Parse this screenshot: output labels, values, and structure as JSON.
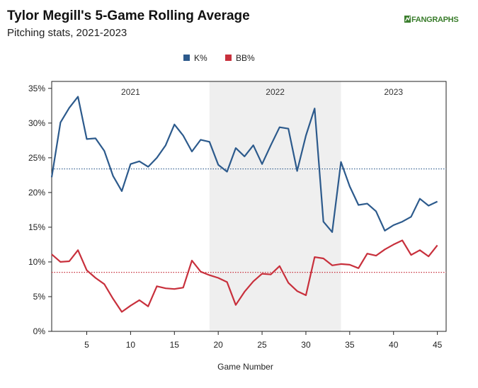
{
  "header": {
    "title": "Tylor Megill's 5-Game Rolling Average",
    "subtitle": "Pitching stats, 2021-2023",
    "logo_text": "FANGRAPHS"
  },
  "chart_data": {
    "type": "line",
    "xlabel": "Game Number",
    "ylabel": "",
    "xlim": [
      1,
      46
    ],
    "ylim": [
      0,
      0.36
    ],
    "x_ticks": [
      5,
      10,
      15,
      20,
      25,
      30,
      35,
      40,
      45
    ],
    "y_ticks": [
      0,
      0.05,
      0.1,
      0.15,
      0.2,
      0.25,
      0.3,
      0.35
    ],
    "y_tick_labels": [
      "0%",
      "5%",
      "10%",
      "15%",
      "20%",
      "25%",
      "30%",
      "35%"
    ],
    "grid": false,
    "legend_placement": "top-center",
    "season_bands": [
      {
        "label": "2021",
        "start": 1,
        "end": 19,
        "shaded": false
      },
      {
        "label": "2022",
        "start": 19,
        "end": 34,
        "shaded": true
      },
      {
        "label": "2023",
        "start": 34,
        "end": 46,
        "shaded": false
      }
    ],
    "series": [
      {
        "name": "K%",
        "color": "#2c5a8c",
        "average": 0.234,
        "x": [
          1,
          2,
          3,
          4,
          5,
          6,
          7,
          8,
          9,
          10,
          11,
          12,
          13,
          14,
          15,
          16,
          17,
          18,
          19,
          20,
          21,
          22,
          23,
          24,
          25,
          26,
          27,
          28,
          29,
          30,
          31,
          32,
          33,
          34,
          35,
          36,
          37,
          38,
          39,
          40,
          41,
          42,
          43,
          44,
          45
        ],
        "values": [
          0.222,
          0.301,
          0.322,
          0.338,
          0.277,
          0.278,
          0.26,
          0.224,
          0.202,
          0.241,
          0.245,
          0.237,
          0.25,
          0.268,
          0.298,
          0.282,
          0.259,
          0.276,
          0.273,
          0.24,
          0.23,
          0.264,
          0.252,
          0.268,
          0.241,
          0.268,
          0.294,
          0.292,
          0.231,
          0.282,
          0.321,
          0.158,
          0.143,
          0.244,
          0.209,
          0.182,
          0.184,
          0.173,
          0.145,
          0.153,
          0.158,
          0.165,
          0.191,
          0.181,
          0.187
        ]
      },
      {
        "name": "BB%",
        "color": "#c8303c",
        "average": 0.085,
        "x": [
          1,
          2,
          3,
          4,
          5,
          6,
          7,
          8,
          9,
          10,
          11,
          12,
          13,
          14,
          15,
          16,
          17,
          18,
          19,
          20,
          21,
          22,
          23,
          24,
          25,
          26,
          27,
          28,
          29,
          30,
          31,
          32,
          33,
          34,
          35,
          36,
          37,
          38,
          39,
          40,
          41,
          42,
          43,
          44,
          45
        ],
        "values": [
          0.111,
          0.1,
          0.101,
          0.117,
          0.088,
          0.077,
          0.068,
          0.047,
          0.028,
          0.037,
          0.045,
          0.036,
          0.065,
          0.062,
          0.061,
          0.063,
          0.102,
          0.086,
          0.081,
          0.077,
          0.071,
          0.038,
          0.057,
          0.072,
          0.083,
          0.082,
          0.094,
          0.07,
          0.058,
          0.052,
          0.107,
          0.105,
          0.095,
          0.097,
          0.096,
          0.091,
          0.112,
          0.109,
          0.118,
          0.125,
          0.131,
          0.11,
          0.117,
          0.108,
          0.124
        ]
      }
    ]
  }
}
